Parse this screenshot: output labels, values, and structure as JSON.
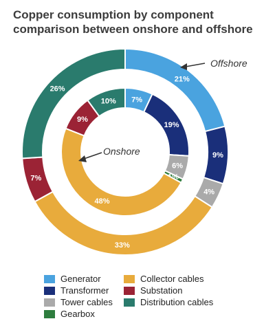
{
  "title_line1": "Copper consumption by component",
  "title_line2": "comparison between onshore and offshore",
  "annotations": {
    "offshore": "Offshore",
    "onshore": "Onshore"
  },
  "chart_data": {
    "type": "pie",
    "title": "Copper consumption by component comparison between onshore and offshore",
    "series": [
      {
        "name": "Offshore",
        "ring": "outer",
        "slices": [
          {
            "label": "Generator",
            "value": 21,
            "text": "21%",
            "color": "#4aa3df"
          },
          {
            "label": "Transformer",
            "value": 9,
            "text": "9%",
            "color": "#1a2f7a"
          },
          {
            "label": "Tower cables",
            "value": 4,
            "text": "4%",
            "color": "#aaaaaa"
          },
          {
            "label": "Collector cables",
            "value": 33,
            "text": "33%",
            "color": "#e8ab3c"
          },
          {
            "label": "Substation",
            "value": 7,
            "text": "7%",
            "color": "#9b2335"
          },
          {
            "label": "Distribution cables",
            "value": 26,
            "text": "26%",
            "color": "#2a7b6d"
          }
        ]
      },
      {
        "name": "Onshore",
        "ring": "inner",
        "slices": [
          {
            "label": "Generator",
            "value": 7,
            "text": "7%",
            "color": "#4aa3df"
          },
          {
            "label": "Transformer",
            "value": 19,
            "text": "19%",
            "color": "#1a2f7a"
          },
          {
            "label": "Tower cables",
            "value": 6,
            "text": "6%",
            "color": "#aaaaaa"
          },
          {
            "label": "Gearbox",
            "value": 1,
            "text": "1%",
            "color": "#2e7d3e"
          },
          {
            "label": "Collector cables",
            "value": 48,
            "text": "48%",
            "color": "#e8ab3c"
          },
          {
            "label": "Substation",
            "value": 9,
            "text": "9%",
            "color": "#9b2335"
          },
          {
            "label": "Distribution cables",
            "value": 10,
            "text": "10%",
            "color": "#2a7b6d"
          }
        ]
      }
    ],
    "legend": [
      {
        "label": "Generator",
        "color": "#4aa3df"
      },
      {
        "label": "Collector cables",
        "color": "#e8ab3c"
      },
      {
        "label": "Transformer",
        "color": "#1a2f7a"
      },
      {
        "label": "Substation",
        "color": "#9b2335"
      },
      {
        "label": "Tower cables",
        "color": "#aaaaaa"
      },
      {
        "label": "Distribution cables",
        "color": "#2a7b6d"
      },
      {
        "label": "Gearbox",
        "color": "#2e7d3e"
      }
    ],
    "legend_position": "bottom"
  }
}
